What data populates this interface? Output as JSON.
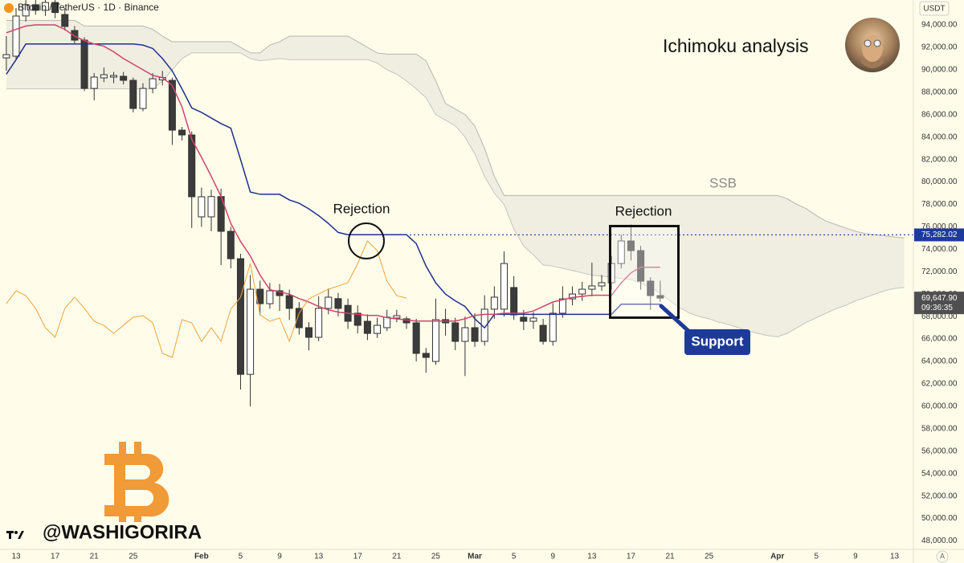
{
  "chart_data": {
    "type": "candlestick",
    "title": "Bitcoin / TetherUS · 1D · Binance",
    "currency": "USDT",
    "auto_scale": "A",
    "annotations": {
      "headline": "Ichimoku analysis",
      "rejection_1": "Rejection",
      "rejection_2": "Rejection",
      "ssb": "SSB",
      "support": "Support",
      "watermark": "@WASHIGORIRA"
    },
    "categories": [
      null,
      "13",
      null,
      null,
      null,
      "17",
      null,
      null,
      null,
      "21",
      null,
      null,
      null,
      "25",
      null,
      null,
      null,
      null,
      null,
      null,
      "Feb",
      null,
      null,
      null,
      "5",
      null,
      null,
      null,
      "9",
      null,
      null,
      null,
      "13",
      null,
      null,
      null,
      "17",
      null,
      null,
      null,
      "21",
      null,
      null,
      null,
      "25",
      null,
      null,
      null,
      "Mar",
      null,
      null,
      null,
      "5",
      null,
      null,
      null,
      "9",
      null,
      null,
      null,
      "13",
      null,
      null,
      null,
      "17",
      null,
      null,
      null,
      "21",
      null,
      null,
      null,
      "25",
      null,
      null,
      null,
      null,
      null,
      null,
      "Apr",
      null,
      null,
      null,
      "5",
      null,
      null,
      null,
      "9",
      null,
      null,
      null,
      "13",
      null
    ],
    "open": [
      91060,
      91210,
      94800,
      95800,
      95300,
      96000,
      94930,
      93500,
      92640,
      88340,
      89280,
      89350,
      89420,
      89060,
      86550,
      88340,
      89100,
      89060,
      84620,
      84190,
      76890,
      76890,
      78700,
      75600,
      73160,
      62850,
      70440,
      69150,
      70300,
      69870,
      68730,
      67010,
      66150,
      68730,
      69600,
      69000,
      68300,
      67580,
      66500,
      67010,
      67870,
      67800,
      67440,
      64720,
      64000,
      67730,
      67440,
      65790,
      67010,
      65790,
      68660,
      68660,
      70590,
      67940,
      67580,
      67220,
      65790,
      68300,
      69580,
      70010,
      70440,
      70730,
      71020,
      72730,
      74740,
      73880,
      71160,
      69870,
      null,
      null,
      null,
      null,
      null,
      null,
      null,
      null,
      null,
      null,
      null,
      null,
      null,
      null,
      null,
      null,
      null,
      null,
      null,
      null,
      null,
      null,
      null,
      null,
      null
    ],
    "high": [
      93000,
      95500,
      96500,
      96800,
      96600,
      96400,
      95500,
      93900,
      92900,
      89700,
      90200,
      89800,
      89800,
      89300,
      88800,
      89700,
      89900,
      89300,
      84900,
      84500,
      79500,
      79300,
      79400,
      76000,
      73600,
      71700,
      71200,
      71000,
      70900,
      70400,
      69300,
      67500,
      69800,
      70500,
      70100,
      69600,
      69000,
      68200,
      67900,
      68600,
      68600,
      68000,
      67800,
      65200,
      69600,
      68700,
      67900,
      68000,
      68300,
      69900,
      70700,
      73800,
      71600,
      68600,
      68400,
      67800,
      69200,
      70700,
      70700,
      71100,
      72800,
      71700,
      73400,
      75300,
      76200,
      74300,
      71500,
      71200,
      null,
      null,
      null,
      null,
      null,
      null,
      null,
      null,
      null,
      null,
      null,
      null,
      null,
      null,
      null,
      null,
      null,
      null,
      null,
      null,
      null,
      null,
      null,
      null,
      null
    ],
    "low": [
      89920,
      90850,
      94300,
      94900,
      94800,
      94600,
      93500,
      92300,
      88100,
      87270,
      88900,
      88800,
      88700,
      86200,
      86300,
      87900,
      88600,
      83300,
      83700,
      75900,
      76000,
      75600,
      72600,
      72300,
      61500,
      59990,
      68100,
      68700,
      68500,
      67700,
      66400,
      65000,
      65800,
      68200,
      68000,
      66900,
      66500,
      65900,
      66100,
      66700,
      67500,
      66900,
      64000,
      63000,
      63700,
      66300,
      65000,
      62700,
      65300,
      65400,
      67800,
      68000,
      67700,
      66800,
      66900,
      65500,
      65400,
      67900,
      69000,
      69400,
      69800,
      70300,
      70400,
      72300,
      73000,
      70400,
      68600,
      69300,
      null,
      null,
      null,
      null,
      null,
      null,
      null,
      null,
      null,
      null,
      null,
      null,
      null,
      null,
      null,
      null,
      null,
      null,
      null,
      null,
      null,
      null,
      null,
      null,
      null
    ],
    "close": [
      91350,
      94790,
      95800,
      95300,
      96000,
      95100,
      93860,
      92640,
      88340,
      89350,
      89560,
      89490,
      89060,
      86550,
      88340,
      89200,
      89300,
      84620,
      84190,
      78680,
      78680,
      78700,
      75600,
      73160,
      62850,
      70440,
      69150,
      70300,
      69870,
      68730,
      67010,
      66150,
      68730,
      69730,
      68730,
      67580,
      67220,
      66500,
      67220,
      67940,
      68080,
      67440,
      64720,
      64360,
      67730,
      67440,
      65790,
      67010,
      65790,
      68660,
      69730,
      72730,
      68150,
      67580,
      67870,
      65790,
      68300,
      69580,
      70010,
      70440,
      70730,
      71020,
      72730,
      74740,
      73880,
      71160,
      69870,
      69647.9,
      null,
      null,
      null,
      null,
      null,
      null,
      null,
      null,
      null,
      null,
      null,
      null,
      null,
      null,
      null,
      null,
      null,
      null,
      null,
      null,
      null,
      null,
      null,
      null,
      null
    ],
    "candle_colors": {
      "up": "#ffffff",
      "down": "#3b3b3b",
      "border": "#333333"
    },
    "series": [
      {
        "color": "#1f2f8f",
        "values": [
          89600,
          90900,
          92300,
          92300,
          92300,
          92300,
          92300,
          92300,
          92300,
          92300,
          92300,
          92300,
          92300,
          92300,
          92200,
          91900,
          91000,
          89900,
          88300,
          86600,
          86200,
          85700,
          85200,
          84800,
          82000,
          79100,
          78900,
          78900,
          78900,
          78400,
          78100,
          77600,
          77000,
          76300,
          75500,
          75300,
          75300,
          75300,
          75300,
          75300,
          75300,
          75300,
          74500,
          72500,
          71000,
          70000,
          69400,
          68900,
          67800,
          67000,
          68200,
          68200,
          68200,
          68200,
          68200,
          68200,
          68200,
          68200,
          68200,
          68200,
          68200,
          68200,
          68200,
          69100,
          69100,
          69100,
          69100,
          69100,
          null,
          null,
          null,
          null,
          null,
          null,
          null,
          null,
          null,
          null,
          null,
          null,
          null,
          null,
          null,
          null,
          null,
          null,
          null,
          null,
          null,
          null,
          null,
          null,
          null
        ]
      },
      {
        "color": "#d2416b",
        "values": [
          93300,
          93600,
          93900,
          94000,
          94000,
          94000,
          93600,
          93000,
          92600,
          92300,
          92100,
          91600,
          91000,
          90500,
          90000,
          89500,
          89300,
          88600,
          86700,
          83800,
          82200,
          80500,
          78700,
          76300,
          74700,
          73400,
          71700,
          70400,
          70200,
          70000,
          69600,
          69300,
          68900,
          68600,
          68400,
          68300,
          68200,
          68100,
          68100,
          67900,
          67800,
          67700,
          67600,
          67600,
          67600,
          67600,
          67600,
          67800,
          68100,
          68200,
          68200,
          68300,
          68300,
          68300,
          68500,
          68900,
          69300,
          69500,
          69700,
          69800,
          69900,
          69900,
          69900,
          71000,
          71900,
          72400,
          72400,
          72400,
          null,
          null,
          null,
          null,
          null,
          null,
          null,
          null,
          null,
          null,
          null,
          null,
          null,
          null,
          null,
          null,
          null,
          null,
          null,
          null,
          null,
          null,
          null,
          null,
          null
        ]
      },
      {
        "color": "#f0a33a",
        "values": [
          69150,
          70300,
          69870,
          68730,
          67010,
          66150,
          68730,
          69730,
          68730,
          67580,
          67220,
          66500,
          67220,
          67940,
          68080,
          67440,
          64720,
          64360,
          67730,
          67440,
          65790,
          67010,
          65790,
          68660,
          69730,
          72730,
          68150,
          67580,
          67870,
          65790,
          68300,
          69580,
          70010,
          70440,
          70730,
          71020,
          72730,
          74740,
          73880,
          71160,
          69870,
          69647.9,
          null,
          null,
          null,
          null,
          null,
          null,
          null,
          null,
          null,
          null,
          null,
          null,
          null,
          null,
          null,
          null,
          null,
          null,
          null,
          null,
          null,
          null,
          null,
          null,
          null,
          null,
          null,
          null,
          null,
          null,
          null,
          null,
          null,
          null,
          null,
          null,
          null,
          null,
          null,
          null,
          null,
          null,
          null,
          null,
          null,
          null,
          null,
          null,
          null,
          null,
          null
        ]
      }
    ],
    "cloud": {
      "fill": "#ebe8dc",
      "spans": [
        {
          "color": "#b5b5b5",
          "values": [
            94400,
            94400,
            94400,
            94400,
            94400,
            94400,
            94400,
            94400,
            93900,
            93900,
            93900,
            93900,
            93900,
            93900,
            93900,
            93600,
            93000,
            92500,
            92500,
            92500,
            92500,
            92500,
            92500,
            92500,
            92000,
            91500,
            91500,
            92200,
            92500,
            93000,
            93000,
            93000,
            93000,
            93000,
            93000,
            93000,
            92500,
            92000,
            91500,
            91400,
            91400,
            91400,
            91400,
            90800,
            89000,
            87000,
            86500,
            86000,
            85000,
            83000,
            80500,
            78800,
            78800,
            78800,
            78800,
            78800,
            78800,
            78800,
            78800,
            78800,
            78800,
            78800,
            78800,
            78800,
            78800,
            78800,
            78800,
            78800,
            78800,
            78800,
            78800,
            78800,
            78800,
            78800,
            78800,
            78800,
            78800,
            78800,
            78800,
            78800,
            78500,
            78000,
            77600,
            77000,
            76500,
            76200,
            75900,
            75600,
            75400,
            75300,
            75200,
            75100,
            75000
          ]
        },
        {
          "color": "#c4c4c4",
          "values": [
            88300,
            88300,
            88300,
            88300,
            88300,
            88300,
            88300,
            88300,
            88300,
            88300,
            88300,
            88300,
            88300,
            88300,
            88300,
            88300,
            89000,
            90000,
            91000,
            91500,
            91500,
            91500,
            91500,
            91500,
            91500,
            91000,
            90800,
            90900,
            91000,
            90900,
            90900,
            90900,
            90900,
            90900,
            90900,
            90900,
            90900,
            90900,
            90600,
            90000,
            89600,
            89000,
            88300,
            87500,
            86000,
            85500,
            85000,
            84000,
            82500,
            80500,
            79000,
            78000,
            75800,
            74300,
            73500,
            72600,
            72500,
            72300,
            72100,
            71900,
            71700,
            71600,
            71500,
            71400,
            71300,
            71000,
            70600,
            70100,
            69400,
            68800,
            68300,
            68000,
            67800,
            67500,
            67300,
            67000,
            66700,
            66500,
            66300,
            66200,
            66500,
            67000,
            67500,
            67900,
            68300,
            68700,
            69000,
            69400,
            69700,
            70000,
            70300,
            70500,
            70600
          ]
        }
      ]
    },
    "price_line": {
      "value": 75282.02,
      "label": "75,282.02",
      "color": "#1e3a9e"
    },
    "last_price": {
      "value": 69647.9,
      "label": "69,647.90",
      "countdown": "09:36:35",
      "color": "#4f4f4f"
    },
    "ylim": [
      47250,
      96220
    ],
    "yticks": [
      {
        "value": 48000,
        "label": "48,000.00"
      },
      {
        "value": 50000,
        "label": "50,000.00"
      },
      {
        "value": 52000,
        "label": "52,000.00"
      },
      {
        "value": 54000,
        "label": "54,000.00"
      },
      {
        "value": 56000,
        "label": "56,000.00"
      },
      {
        "value": 58000,
        "label": "58,000.00"
      },
      {
        "value": 60000,
        "label": "60,000.00"
      },
      {
        "value": 62000,
        "label": "62,000.00"
      },
      {
        "value": 64000,
        "label": "64,000.00"
      },
      {
        "value": 66000,
        "label": "66,000.00"
      },
      {
        "value": 68000,
        "label": "68,000.00"
      },
      {
        "value": 70000,
        "label": "70,000.00"
      },
      {
        "value": 72000,
        "label": "72,000.00"
      },
      {
        "value": 74000,
        "label": "74,000.00"
      },
      {
        "value": 76000,
        "label": "76,000.00"
      },
      {
        "value": 78000,
        "label": "78,000.00"
      },
      {
        "value": 80000,
        "label": "80,000.00"
      },
      {
        "value": 82000,
        "label": "82,000.00"
      },
      {
        "value": 84000,
        "label": "84,000.00"
      },
      {
        "value": 86000,
        "label": "86,000.00"
      },
      {
        "value": 88000,
        "label": "88,000.00"
      },
      {
        "value": 90000,
        "label": "90,000.00"
      },
      {
        "value": 92000,
        "label": "92,000.00"
      },
      {
        "value": 94000,
        "label": "94,000.00"
      }
    ],
    "grid": false
  }
}
